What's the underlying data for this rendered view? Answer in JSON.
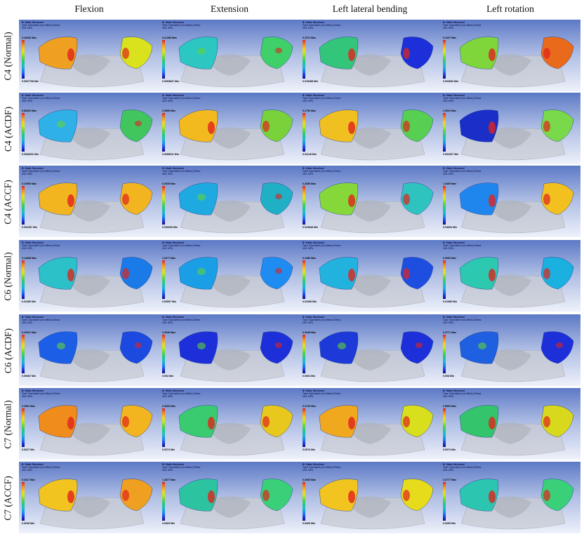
{
  "columns": [
    "Flexion",
    "Extension",
    "Left lateral bending",
    "Left rotation"
  ],
  "rows": [
    "C4 (Normal)",
    "C4 (ACDF)",
    "C4 (ACCF)",
    "C6 (Normal)",
    "C6 (ACDF)",
    "C7 (Normal)",
    "C7 (ACCF)"
  ],
  "panel_header": {
    "title": "B: Static Structural",
    "line2": "Type: Equivalent (von-Mises) Stress",
    "line3": "Unit: MPa"
  },
  "ticks": [
    "",
    "",
    "",
    "",
    "",
    "",
    "",
    "",
    "",
    ""
  ],
  "panels": [
    {
      "max": "0.24636 Max",
      "min": "0.0067798 Min",
      "style": "warm-sides",
      "left": "#f0a020",
      "right": "#d9e21c"
    },
    {
      "max": "0.21288 Max",
      "min": "0.0053847 Min",
      "style": "cool-sides",
      "left": "#2cc7c0",
      "right": "#3fd06a"
    },
    {
      "max": "0.1574 Max",
      "min": "0.015288 Min",
      "style": "mixed",
      "left": "#33c57a",
      "right": "#1d2fd8"
    },
    {
      "max": "0.1637 Max",
      "min": "0.004669 Min",
      "style": "mixed",
      "left": "#7fd63a",
      "right": "#ea6a1c"
    },
    {
      "max": "0.58303 Max",
      "min": "0.0084032 Min",
      "style": "cool-sides",
      "left": "#2fb0e6",
      "right": "#41c65e"
    },
    {
      "max": "2.0899 Max",
      "min": "0.0089611 Min",
      "style": "warm-sides",
      "left": "#f2ba1f",
      "right": "#79d23a"
    },
    {
      "max": "0.2736 Max",
      "min": "0.01148 Min",
      "style": "warm-sides",
      "left": "#f0c020",
      "right": "#56cf52"
    },
    {
      "max": "1.9023 Max",
      "min": "0.002337 Min",
      "style": "mixed",
      "left": "#1a2ec8",
      "right": "#7ad94a"
    },
    {
      "max": "0.10956 Max",
      "min": "0.002287 Min",
      "style": "warm-sides",
      "left": "#f2b51f",
      "right": "#f2b51f"
    },
    {
      "max": "0.3035 Max",
      "min": "0.006608 Min",
      "style": "cool-sides",
      "left": "#1ea9e0",
      "right": "#1fb0c6"
    },
    {
      "max": "0.2658 Max",
      "min": "0.010848 Min",
      "style": "mixed",
      "left": "#86d83a",
      "right": "#2fc3c0"
    },
    {
      "max": "1.3469 Max",
      "min": "0.04694 Min",
      "style": "mixed",
      "left": "#1f86ee",
      "right": "#f2c01f"
    },
    {
      "max": "0.14088 Max",
      "min": "0.01286 Min",
      "style": "mixed",
      "left": "#2cc0c8",
      "right": "#1a7ae8"
    },
    {
      "max": "1.0277 Max",
      "min": "0.00537 Min",
      "style": "cool-sides",
      "left": "#1a9fe6",
      "right": "#1e8cf0"
    },
    {
      "max": "0.2485 Max",
      "min": "0.01998 Min",
      "style": "mixed",
      "left": "#22b2de",
      "right": "#1e4ee0"
    },
    {
      "max": "0.3090 Max",
      "min": "0.01985 Min",
      "style": "mixed",
      "left": "#2cc8b0",
      "right": "#1ab0e0"
    },
    {
      "max": "0.20021 Max",
      "min": "0.00087 Min",
      "style": "cool-sides",
      "left": "#1c5fe6",
      "right": "#1c4ae0"
    },
    {
      "max": "0.3946 Max",
      "min": "0.004 Min",
      "style": "cool-sides",
      "left": "#1d2fd8",
      "right": "#1d2fd8"
    },
    {
      "max": "0.3048 Max",
      "min": "0.0004 Min",
      "style": "cool-sides",
      "left": "#1d3ad8",
      "right": "#1d2fd8"
    },
    {
      "max": "0.3771 Max",
      "min": "0.008 Min",
      "style": "cool-sides",
      "left": "#1e60e0",
      "right": "#1d2fd8"
    },
    {
      "max": "0.4502 Max",
      "min": "0.0027 Min",
      "style": "warm-sides",
      "left": "#f08c1c",
      "right": "#f2b51f"
    },
    {
      "max": "0.3309 Max",
      "min": "0.0074 Min",
      "style": "mixed",
      "left": "#3acb70",
      "right": "#e8c81c"
    },
    {
      "max": "0.3746 Max",
      "min": "0.0073 Min",
      "style": "warm-sides",
      "left": "#f0a81f",
      "right": "#d8df1c"
    },
    {
      "max": "0.8592 Max",
      "min": "0.0074 Min",
      "style": "mixed",
      "left": "#34c46c",
      "right": "#d8d81c"
    },
    {
      "max": "0.3417 Max",
      "min": "0.0038 Min",
      "style": "warm-sides",
      "left": "#f2c41f",
      "right": "#f0a020"
    },
    {
      "max": "1.3877 Max",
      "min": "0.0069 Min",
      "style": "mixed",
      "left": "#2cc4a0",
      "right": "#3ad07a"
    },
    {
      "max": "0.3065 Max",
      "min": "0.0069 Min",
      "style": "warm-sides",
      "left": "#f2c41f",
      "right": "#e6dc1c"
    },
    {
      "max": "0.3777 Max",
      "min": "0.0059 Min",
      "style": "mixed",
      "left": "#2cc6b0",
      "right": "#3ad07a"
    }
  ]
}
